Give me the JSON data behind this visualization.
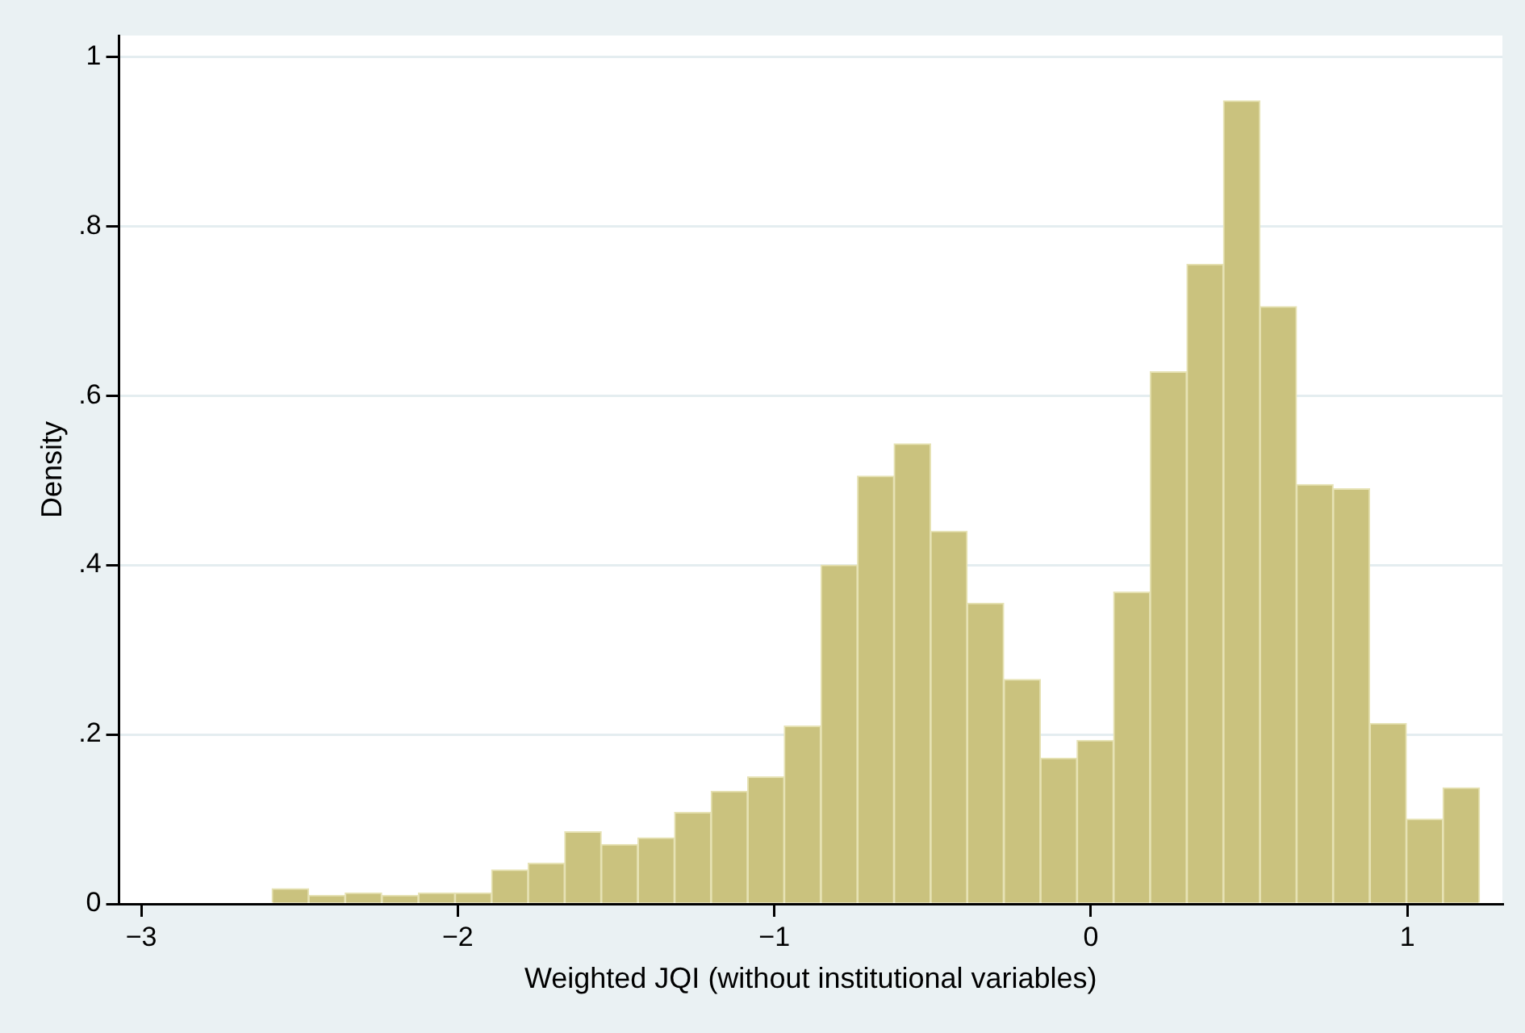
{
  "chart_data": {
    "type": "histogram",
    "xlabel": "Weighted JQI (without institutional variables)",
    "ylabel": "Density",
    "bins": [
      -2.587,
      -2.471,
      -2.356,
      -2.24,
      -2.124,
      -2.009,
      -1.893,
      -1.778,
      -1.662,
      -1.547,
      -1.431,
      -1.315,
      -1.2,
      -1.084,
      -0.969,
      -0.853,
      -0.737,
      -0.622,
      -0.506,
      -0.391,
      -0.275,
      -0.159,
      -0.044,
      0.072,
      0.187,
      0.303,
      0.419,
      0.534,
      0.65,
      0.765,
      0.881,
      0.997,
      1.112,
      1.228
    ],
    "values": [
      0.018,
      0.01,
      0.013,
      0.01,
      0.013,
      0.013,
      0.04,
      0.048,
      0.085,
      0.07,
      0.078,
      0.108,
      0.133,
      0.15,
      0.21,
      0.4,
      0.505,
      0.543,
      0.44,
      0.355,
      0.265,
      0.172,
      0.193,
      0.368,
      0.628,
      0.755,
      0.948,
      0.705,
      0.495,
      0.49,
      0.213,
      0.1,
      0.137
    ],
    "color": "#cac27e",
    "xlim": [
      -3.07,
      1.3
    ],
    "xticks": [
      {
        "value": -3,
        "label": "−3"
      },
      {
        "value": -2,
        "label": "−2"
      },
      {
        "value": -1,
        "label": "−1"
      },
      0,
      1
    ],
    "ylim": [
      0,
      1.025
    ],
    "yticks": [
      0,
      {
        "value": 0.2,
        "label": ".2"
      },
      {
        "value": 0.4,
        "label": ".4"
      },
      {
        "value": 0.6,
        "label": ".6"
      },
      {
        "value": 0.8,
        "label": ".8"
      },
      1
    ],
    "grid": "y"
  }
}
